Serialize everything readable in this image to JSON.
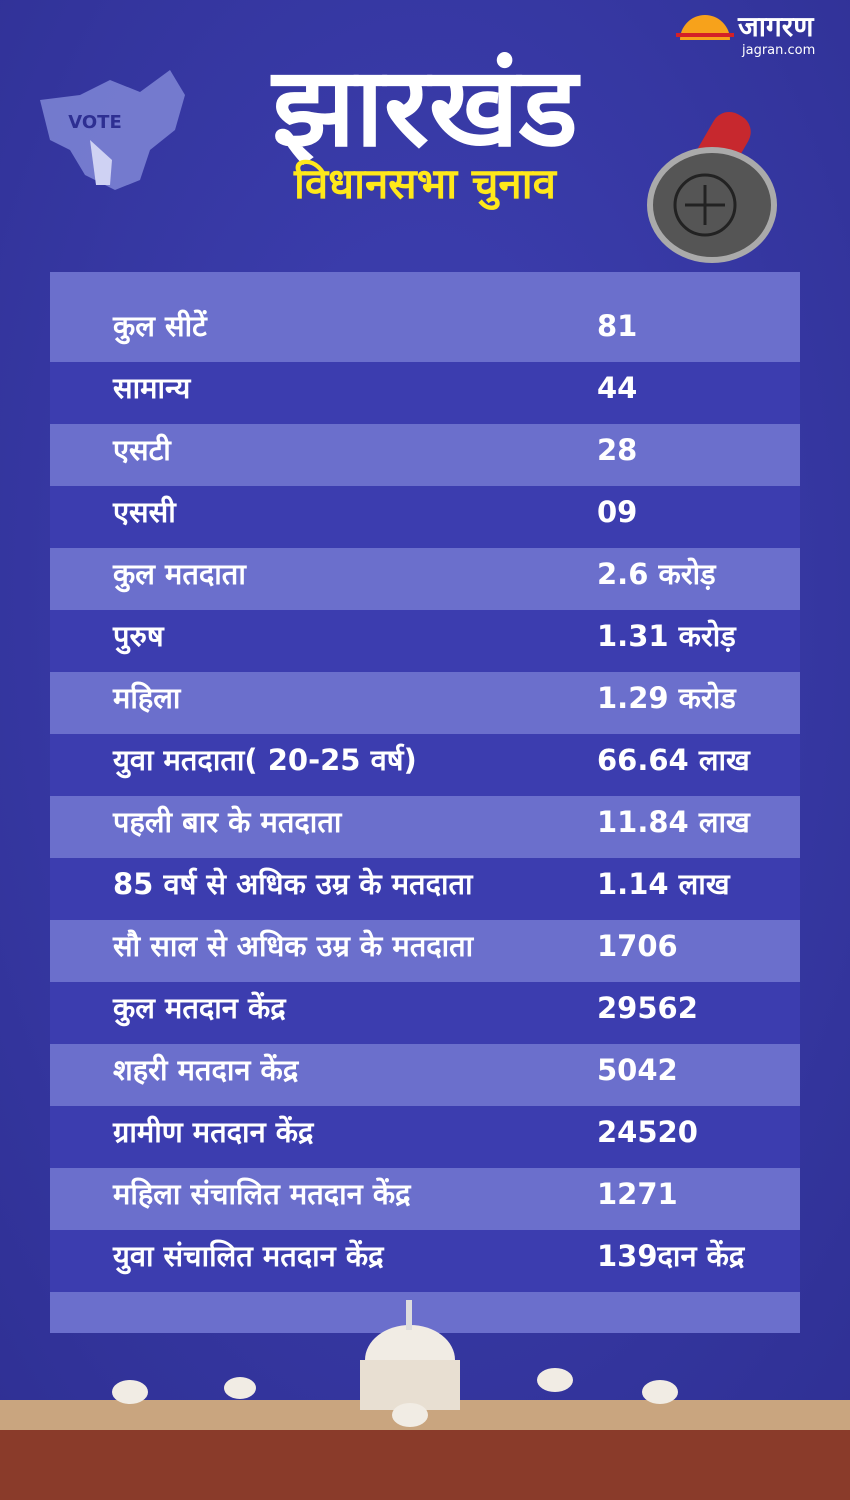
{
  "header": {
    "logo": "जागरण",
    "site": "jagran.com",
    "badge": "VOTE",
    "title": "झारखंड",
    "subtitle": "विधानसभा चुनाव"
  },
  "table": {
    "rows": [
      [
        "कुल सीटें",
        "81"
      ],
      [
        "सामान्य",
        "44"
      ],
      [
        "एसटी",
        "28"
      ],
      [
        "एससी",
        "09"
      ],
      [
        "कुल मतदाता",
        "2.6 करोड़"
      ],
      [
        "पुरुष",
        "1.31 करोड़"
      ],
      [
        "महिला",
        "1.29 करोड"
      ],
      [
        "युवा मतदाता( 20-25 वर्ष)",
        "66.64 लाख"
      ],
      [
        "पहली बार के मतदाता",
        "11.84 लाख"
      ],
      [
        "85 वर्ष से अधिक उम्र के मतदाता",
        "1.14 लाख"
      ],
      [
        "सौ साल से अधिक उम्र के मतदाता",
        "1706"
      ],
      [
        "कुल मतदान केंद्र",
        "29562"
      ],
      [
        "शहरी मतदान केंद्र",
        "5042"
      ],
      [
        "ग्रामीण मतदान केंद्र",
        "24520"
      ],
      [
        "महिला संचालित मतदान केंद्र",
        "1271"
      ],
      [
        "युवा संचालित मतदान केंद्र",
        "139दान केंद्र"
      ]
    ]
  }
}
